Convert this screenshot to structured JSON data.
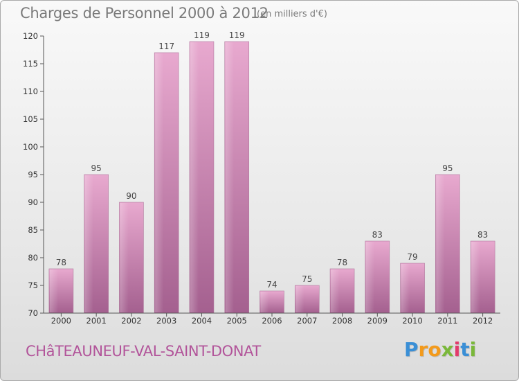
{
  "header": {
    "title": "Charges de Personnel 2000 à 2012",
    "unit_note": "(en milliers d'€)"
  },
  "footer": {
    "commune": "CHâTEAUNEUF-VAL-SAINT-DONAT",
    "logo_text": "Proxiti"
  },
  "colors": {
    "bar_light": "#e8a9cf",
    "bar_dark": "#a4608f",
    "commune": "#b2549a"
  },
  "chart_data": {
    "type": "bar",
    "title": "Charges de Personnel 2000 à 2012",
    "subtitle": "(en milliers d'€)",
    "categories": [
      "2000",
      "2001",
      "2002",
      "2003",
      "2004",
      "2005",
      "2006",
      "2007",
      "2008",
      "2009",
      "2010",
      "2011",
      "2012"
    ],
    "values": [
      78,
      95,
      90,
      117,
      119,
      119,
      74,
      75,
      78,
      83,
      79,
      95,
      83
    ],
    "xlabel": "",
    "ylabel": "",
    "ylim": [
      70,
      120
    ],
    "yticks": [
      70,
      75,
      80,
      85,
      90,
      95,
      100,
      105,
      110,
      115,
      120
    ],
    "grid": false,
    "data_labels": true
  }
}
